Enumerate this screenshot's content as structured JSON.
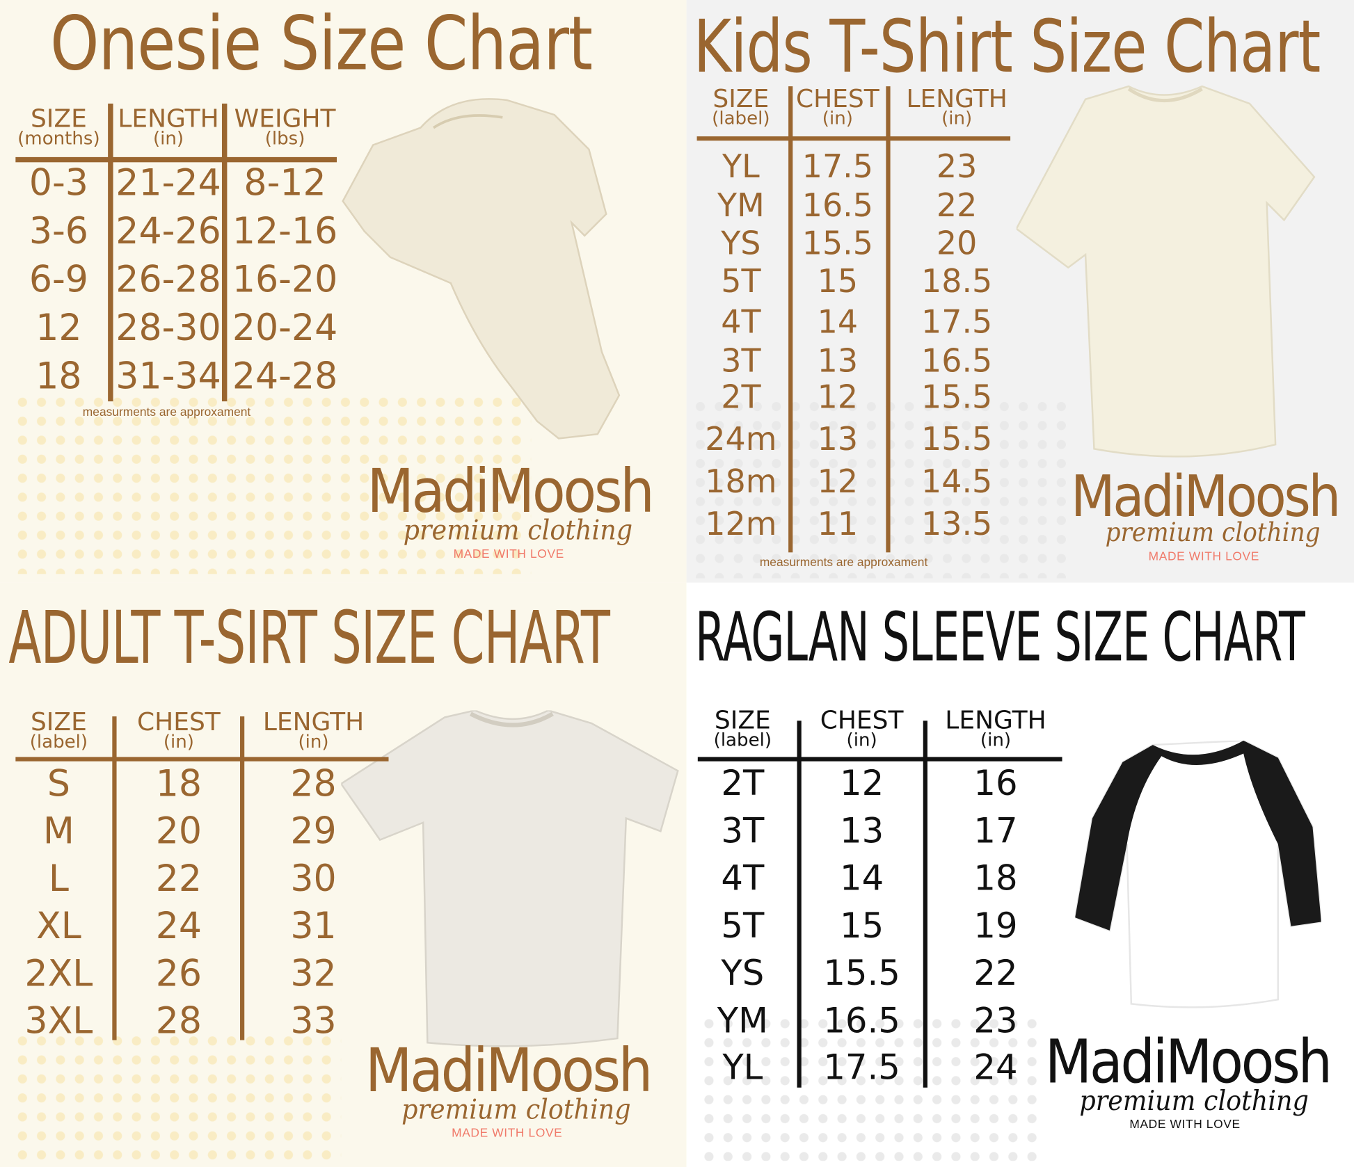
{
  "colors": {
    "brown": "#9a6630",
    "cream": "#fbf8ec",
    "gray_bg": "#f2f2f2",
    "white": "#ffffff",
    "black": "#111111",
    "love_pink": "#f07a6a",
    "dot_yellow": "#f7e3a4",
    "dot_gray": "#d8d8d8"
  },
  "panels": [
    {
      "id": "onesie",
      "title": "Onesie Size Chart",
      "note": "measurments are approxament",
      "garment": "onesie",
      "columns": [
        {
          "header": "SIZE",
          "unit": "(months)"
        },
        {
          "header": "LENGTH",
          "unit": "(in)"
        },
        {
          "header": "WEIGHT",
          "unit": "(lbs)"
        }
      ],
      "rows": [
        [
          "0-3",
          "21-24",
          "8-12"
        ],
        [
          "3-6",
          "24-26",
          "12-16"
        ],
        [
          "6-9",
          "26-28",
          "16-20"
        ],
        [
          "12",
          "28-30",
          "20-24"
        ],
        [
          "18",
          "31-34",
          "24-28"
        ]
      ],
      "logo": {
        "brand": "MadiMoosh",
        "tagline": "premium clothing",
        "motto": "MADE WITH LOVE"
      }
    },
    {
      "id": "kids",
      "title": "Kids T-Shirt Size Chart",
      "note": "measurments are approxament",
      "garment": "kids-tshirt",
      "columns": [
        {
          "header": "SIZE",
          "unit": "(label)"
        },
        {
          "header": "CHEST",
          "unit": "(in)"
        },
        {
          "header": "LENGTH",
          "unit": "(in)"
        }
      ],
      "rows": [
        [
          "YL",
          "17.5",
          "23"
        ],
        [
          "YM",
          "16.5",
          "22"
        ],
        [
          "YS",
          "15.5",
          "20"
        ],
        [
          "5T",
          "15",
          "18.5"
        ],
        [
          "4T",
          "14",
          "17.5"
        ],
        [
          "3T",
          "13",
          "16.5"
        ],
        [
          "2T",
          "12",
          "15.5"
        ],
        [
          "24m",
          "13",
          "15.5"
        ],
        [
          "18m",
          "12",
          "14.5"
        ],
        [
          "12m",
          "11",
          "13.5"
        ]
      ],
      "logo": {
        "brand": "MadiMoosh",
        "tagline": "premium clothing",
        "motto": "MADE WITH LOVE"
      }
    },
    {
      "id": "adult",
      "title": "ADULT T-SIRT SIZE CHART",
      "note": "",
      "garment": "adult-tshirt",
      "columns": [
        {
          "header": "SIZE",
          "unit": "(label)"
        },
        {
          "header": "CHEST",
          "unit": "(in)"
        },
        {
          "header": "LENGTH",
          "unit": "(in)"
        }
      ],
      "rows": [
        [
          "S",
          "18",
          "28"
        ],
        [
          "M",
          "20",
          "29"
        ],
        [
          "L",
          "22",
          "30"
        ],
        [
          "XL",
          "24",
          "31"
        ],
        [
          "2XL",
          "26",
          "32"
        ],
        [
          "3XL",
          "28",
          "33"
        ]
      ],
      "logo": {
        "brand": "MadiMoosh",
        "tagline": "premium clothing",
        "motto": "MADE WITH LOVE"
      }
    },
    {
      "id": "raglan",
      "title": "RAGLAN SLEEVE SIZE CHART",
      "note": "",
      "garment": "raglan-shirt",
      "columns": [
        {
          "header": "SIZE",
          "unit": "(label)"
        },
        {
          "header": "CHEST",
          "unit": "(in)"
        },
        {
          "header": "LENGTH",
          "unit": "(in)"
        }
      ],
      "rows": [
        [
          "2T",
          "12",
          "16"
        ],
        [
          "3T",
          "13",
          "17"
        ],
        [
          "4T",
          "14",
          "18"
        ],
        [
          "5T",
          "15",
          "19"
        ],
        [
          "YS",
          "15.5",
          "22"
        ],
        [
          "YM",
          "16.5",
          "23"
        ],
        [
          "YL",
          "17.5",
          "24"
        ]
      ],
      "logo": {
        "brand": "MadiMoosh",
        "tagline": "premium clothing",
        "motto": "MADE WITH LOVE"
      }
    }
  ]
}
